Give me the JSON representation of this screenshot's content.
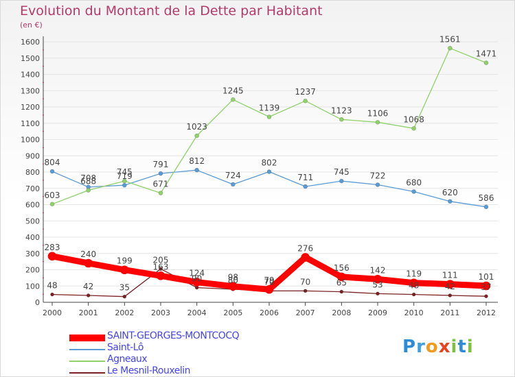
{
  "header": {
    "title": "Evolution du Montant de la Dette par Habitant",
    "unit": "(en €)"
  },
  "logo": {
    "text": "Proxiti",
    "letters": [
      {
        "ch": "P",
        "color": "#2e8bd6"
      },
      {
        "ch": "r",
        "color": "#3aa0e0"
      },
      {
        "ch": "o",
        "color": "#f29a1b"
      },
      {
        "ch": "x",
        "color": "#e8431f"
      },
      {
        "ch": "i",
        "color": "#7cc242"
      },
      {
        "ch": "t",
        "color": "#2e8bd6"
      },
      {
        "ch": "i",
        "color": "#7cc242"
      }
    ]
  },
  "chart_data": {
    "type": "line",
    "title": "Evolution du Montant de la Dette par Habitant",
    "ylabel": "(en €)",
    "xlabel": "",
    "ylim": [
      0,
      1600
    ],
    "yticks": [
      0,
      100,
      200,
      300,
      400,
      500,
      600,
      700,
      800,
      900,
      1000,
      1100,
      1200,
      1300,
      1400,
      1500,
      1600
    ],
    "grid": "horizontal",
    "legend_position": "bottom-left",
    "x": [
      "2000",
      "2001",
      "2002",
      "2003",
      "2004",
      "2005",
      "2006",
      "2007",
      "2008",
      "2009",
      "2010",
      "2011",
      "2012"
    ],
    "series": [
      {
        "name": "SAINT-GEORGES-MONTCOCQ",
        "color": "#ff0000",
        "values": [
          283,
          240,
          199,
          163,
          124,
          98,
          79,
          276,
          156,
          142,
          119,
          111,
          101
        ],
        "labels": [
          "283",
          "240",
          "199",
          "163",
          "124",
          "98",
          "79",
          "276",
          "156",
          "142",
          "119",
          "111",
          "101"
        ]
      },
      {
        "name": "Saint-Lô",
        "color": "#5b9bd5",
        "values": [
          804,
          708,
          719,
          791,
          812,
          724,
          802,
          711,
          745,
          722,
          680,
          620,
          586
        ],
        "labels": [
          "804",
          "708",
          "719",
          "791",
          "812",
          "724",
          "802",
          "711",
          "745",
          "722",
          "680",
          "620",
          "586"
        ]
      },
      {
        "name": "Agneaux",
        "color": "#8fd16a",
        "values": [
          603,
          688,
          745,
          671,
          1023,
          1245,
          1139,
          1237,
          1123,
          1106,
          1068,
          1561,
          1471
        ],
        "labels": [
          "603",
          "688",
          "745",
          "671",
          "1023",
          "1245",
          "1139",
          "1237",
          "1123",
          "1106",
          "1068",
          "1561",
          "1471"
        ]
      },
      {
        "name": "Le Mesnil-Rouxelin",
        "color": "#7a2222",
        "values": [
          48,
          42,
          35,
          205,
          90,
          80,
          70,
          70,
          65,
          53,
          48,
          42,
          37
        ],
        "labels": [
          "48",
          "42",
          "35",
          "205",
          "90",
          "80",
          "70",
          "70",
          "65",
          "53",
          "48",
          "42",
          "37"
        ]
      }
    ]
  }
}
